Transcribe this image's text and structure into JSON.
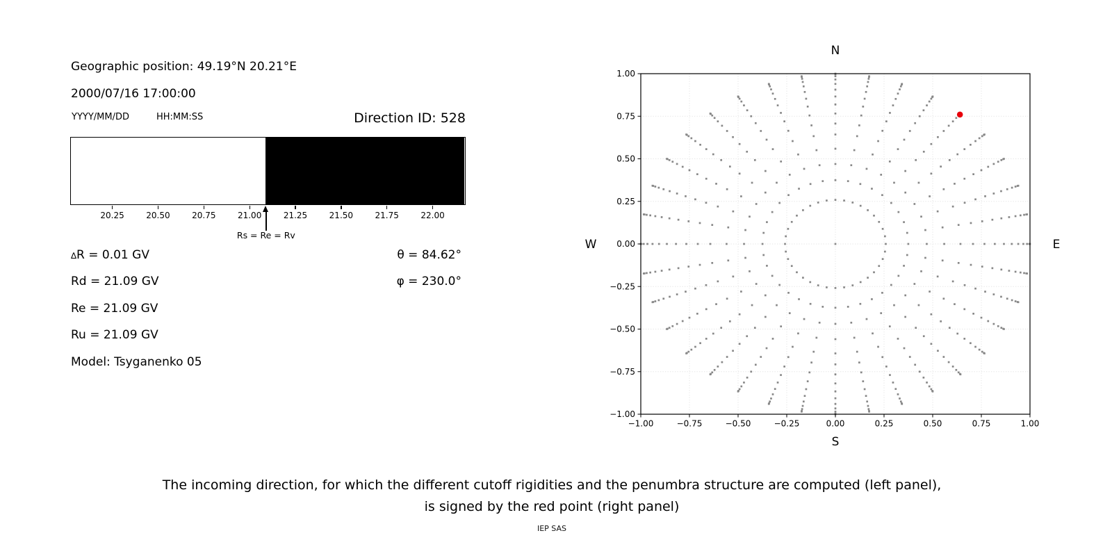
{
  "left_panel": {
    "geo_position": "Geographic position: 49.19°N 20.21°E",
    "datetime": "2000/07/16 17:00:00",
    "date_format_label": "YYYY/MM/DD",
    "time_format_label": "HH:MM:SS",
    "direction_id": "Direction ID: 528",
    "arrow_label": "Rs = Re = Rv",
    "readouts_left": [
      "∆R = 0.01 GV",
      "Rd = 21.09 GV",
      "Re = 21.09 GV",
      "Ru = 21.09 GV",
      "Model: Tsyganenko 05"
    ],
    "readouts_right": [
      "θ = 84.62°",
      "φ = 230.0°"
    ]
  },
  "caption": {
    "line1": "The incoming direction, for which the different cutoff rigidities and the penumbra structure are computed (left panel),",
    "line2": "is signed by the red point (right panel)"
  },
  "credit": "IEP SAS",
  "chart_data": [
    {
      "type": "bar",
      "title": "penumbra structure",
      "x_range": [
        20.02,
        22.18
      ],
      "x_ticks": [
        20.25,
        20.5,
        20.75,
        21.0,
        21.25,
        21.5,
        21.75,
        22.0
      ],
      "segments": [
        {
          "from": 20.02,
          "to": 21.09,
          "color": "#ffffff"
        },
        {
          "from": 21.09,
          "to": 22.18,
          "color": "#000000"
        }
      ],
      "annotation": {
        "x": 21.09,
        "label": "Rs = Re = Rv"
      },
      "values": {
        "delta_R_GV": 0.01,
        "Rd_GV": 21.09,
        "Re_GV": 21.09,
        "Ru_GV": 21.09
      }
    },
    {
      "type": "scatter",
      "xlim": [
        -1,
        1
      ],
      "ylim": [
        -1,
        1
      ],
      "ticks": [
        -1,
        -0.75,
        -0.5,
        -0.25,
        0,
        0.25,
        0.5,
        0.75,
        1
      ],
      "grid": true,
      "compass": {
        "top": "N",
        "bottom": "S",
        "left": "W",
        "right": "E"
      },
      "pattern": {
        "azimuth_step_deg": 10,
        "azimuth_count": 36,
        "zenith_angles_deg": [
          15,
          22,
          28,
          34,
          40,
          45,
          50,
          55,
          60,
          65,
          70,
          75,
          80,
          85,
          90
        ],
        "radius_rule": "sin(zenith)",
        "center_point": true,
        "dot_color": "#888888"
      },
      "red_point": {
        "x": 0.64,
        "y": 0.76,
        "color": "#e8000b"
      }
    }
  ]
}
